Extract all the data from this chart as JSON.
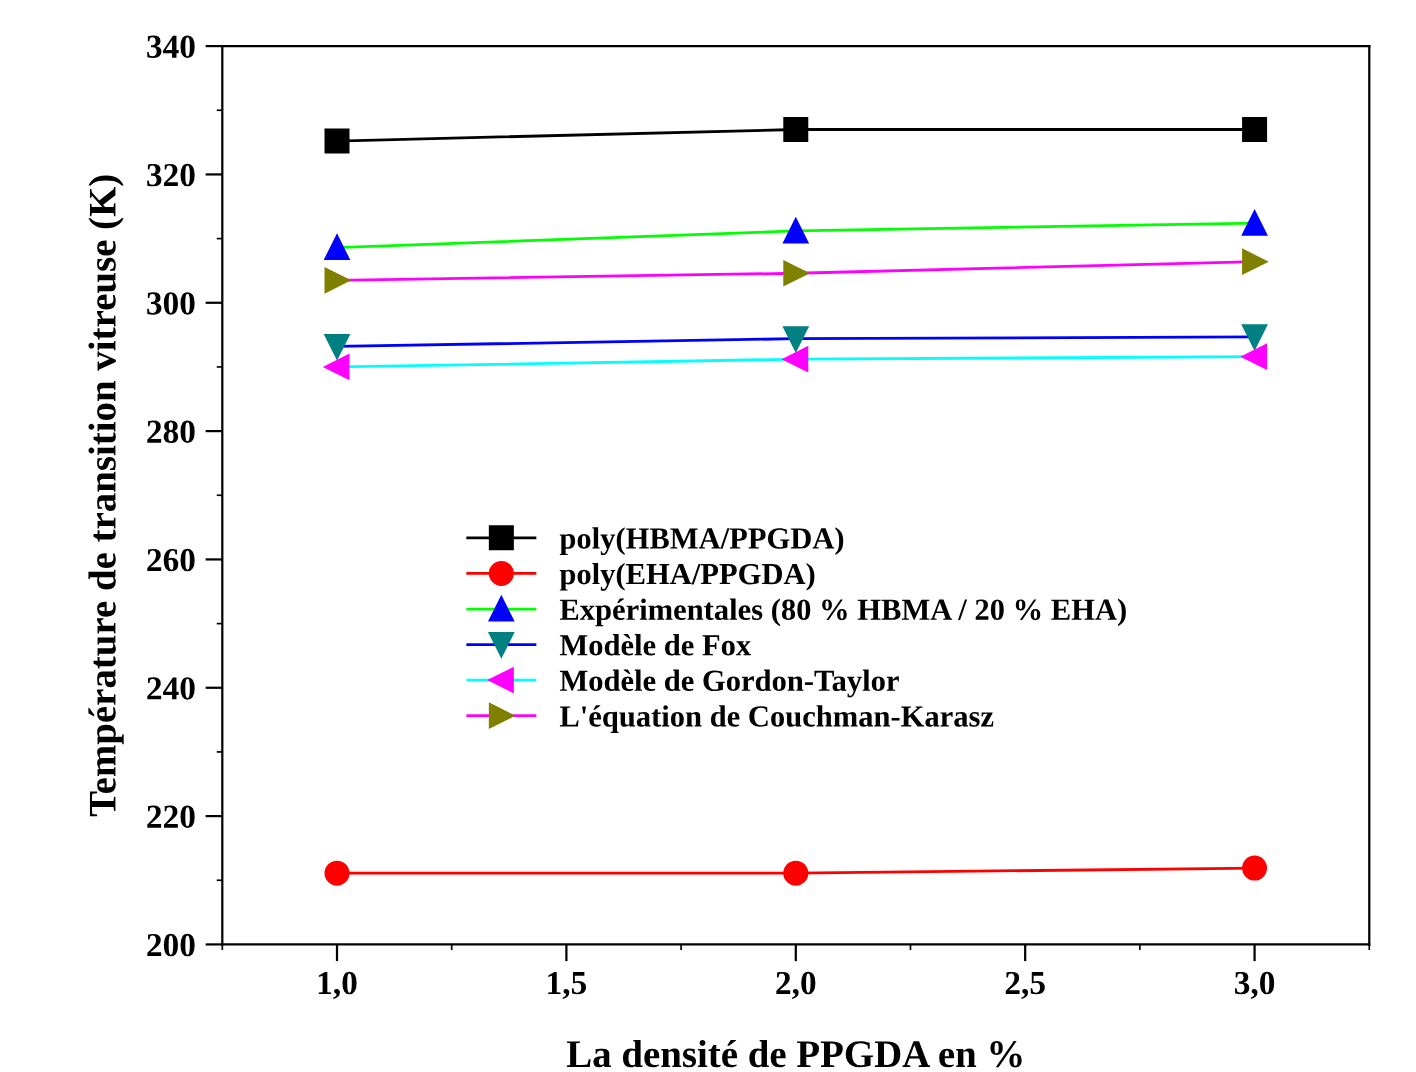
{
  "chart_data": {
    "type": "line",
    "xlabel": "La densité de PPGDA en %",
    "ylabel": "Température de transition vitreuse (K)",
    "x": [
      1,
      2,
      3
    ],
    "xlim": [
      0.75,
      3.25
    ],
    "xticks": [
      {
        "value": 1,
        "label": "1,0"
      },
      {
        "value": 1.5,
        "label": "1,5"
      },
      {
        "value": 2,
        "label": "2,0"
      },
      {
        "value": 2.5,
        "label": "2,5"
      },
      {
        "value": 3,
        "label": "3,0"
      }
    ],
    "ylim": [
      200,
      340
    ],
    "yticks": [
      200,
      220,
      240,
      260,
      280,
      300,
      320,
      340
    ],
    "grid": false,
    "legend": "left",
    "series": [
      {
        "name": "poly(HBMA/PPGDA)",
        "color": "#000000",
        "colors": [
          "#000000",
          "#000000",
          "#000000"
        ],
        "marker": "square",
        "values": [
          325.2,
          327,
          327
        ]
      },
      {
        "name": "poly(EHA/PPGDA)",
        "color": "#ff0000",
        "colors": [
          "#ff0000",
          "#ff0000",
          "#ff0000"
        ],
        "marker": "circle",
        "values": [
          211.1,
          211.1,
          211.9
        ]
      },
      {
        "name": "Expérimentales (80 % HBMA / 20 % EHA)",
        "color": "#00ff00",
        "colors": [
          "#0000ff",
          "#0000ff",
          "#0000ff"
        ],
        "marker": "triangle",
        "values": [
          308.6,
          311.2,
          312.4
        ]
      },
      {
        "name": "Modèle de Fox",
        "color": "#0000ff",
        "colors": [
          "#008080",
          "#008080",
          "#008080"
        ],
        "marker": "triangle_down",
        "values": [
          293.2,
          294.4,
          294.7
        ]
      },
      {
        "name": "Modèle de Gordon-Taylor",
        "color": "#00ffff",
        "colors": [
          "#ff00ff",
          "#ff00ff",
          "#ff00ff"
        ],
        "marker": "triangle_left",
        "values": [
          290.0,
          291.2,
          291.6
        ]
      },
      {
        "name": "L'équation de Couchman-Karasz",
        "color": "#ff00ff",
        "colors": [
          "#808000",
          "#808000",
          "#808000"
        ],
        "marker": "triangle_right",
        "values": [
          303.5,
          304.6,
          306.4
        ]
      }
    ]
  }
}
